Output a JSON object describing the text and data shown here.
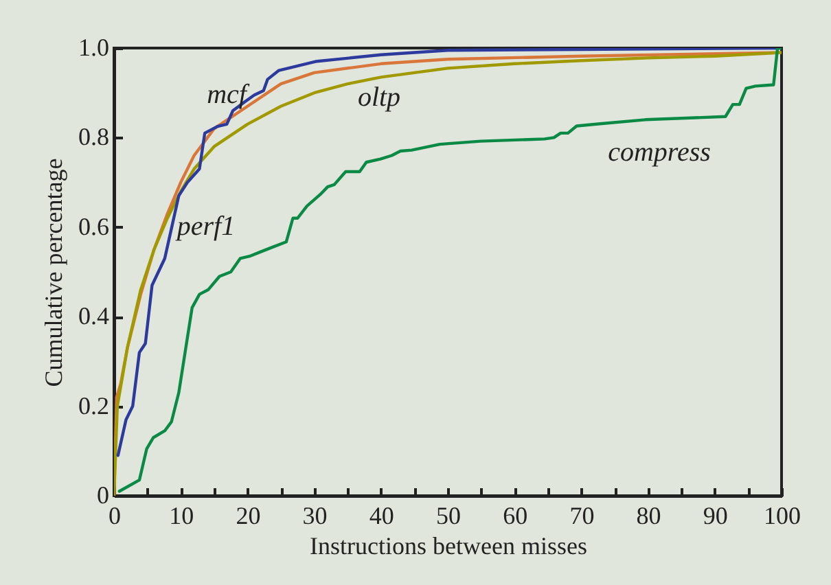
{
  "chart_data": {
    "type": "line",
    "xlabel": "Instructions between misses",
    "ylabel": "Cumulative percentage",
    "xlim": [
      0,
      100
    ],
    "ylim": [
      0,
      1
    ],
    "xticks": [
      0,
      {
        "value": 5,
        "label": null
      },
      10,
      {
        "value": 15,
        "label": null
      },
      20,
      {
        "value": 25,
        "label": null
      },
      30,
      {
        "value": 35,
        "label": null
      },
      40,
      {
        "value": 45,
        "label": null
      },
      50,
      {
        "value": 55,
        "label": null
      },
      60,
      {
        "value": 65,
        "label": null
      },
      70,
      {
        "value": 75,
        "label": null
      },
      80,
      {
        "value": 85,
        "label": null
      },
      90,
      {
        "value": 95,
        "label": null
      },
      100
    ],
    "yticks": [
      0,
      0.2,
      0.4,
      0.6,
      0.8,
      {
        "value": 1,
        "label": "1.0"
      }
    ],
    "grid": false,
    "legend": false,
    "marker": "none",
    "line_style": "solid",
    "series": [
      {
        "name": "mcf",
        "color": "#d9773a",
        "x": [
          0,
          0.4,
          1,
          2,
          4,
          6,
          8,
          10,
          12,
          15,
          20,
          25,
          30,
          40,
          50,
          70,
          100
        ],
        "values": [
          0,
          0.22,
          0.25,
          0.33,
          0.45,
          0.55,
          0.63,
          0.7,
          0.76,
          0.82,
          0.87,
          0.92,
          0.945,
          0.965,
          0.975,
          0.982,
          0.99
        ]
      },
      {
        "name": "oltp",
        "color": "#a09a00",
        "x": [
          0,
          0.5,
          2,
          4,
          6,
          8,
          10,
          12,
          15,
          20,
          25,
          30,
          35,
          40,
          50,
          60,
          70,
          80,
          90,
          100
        ],
        "values": [
          0,
          0.2,
          0.33,
          0.46,
          0.55,
          0.62,
          0.68,
          0.73,
          0.78,
          0.83,
          0.87,
          0.9,
          0.92,
          0.935,
          0.955,
          0.965,
          0.972,
          0.978,
          0.982,
          0.99
        ]
      },
      {
        "name": "perf1",
        "color": "#2b3a9c",
        "x": [
          0.6,
          1.8,
          2.8,
          3.8,
          4.7,
          5.7,
          7.6,
          9.7,
          11,
          12.8,
          13.6,
          15.5,
          16.9,
          17.8,
          19.6,
          21,
          22.4,
          23,
          24.7,
          30.2,
          40,
          50,
          70,
          100
        ],
        "values": [
          0.09,
          0.17,
          0.2,
          0.32,
          0.34,
          0.47,
          0.53,
          0.67,
          0.7,
          0.73,
          0.81,
          0.825,
          0.83,
          0.86,
          0.88,
          0.895,
          0.905,
          0.93,
          0.95,
          0.97,
          0.985,
          0.995,
          0.997,
          1
        ]
      },
      {
        "name": "compress",
        "color": "#0b8a46",
        "x": [
          0.8,
          3.8,
          4.9,
          5.9,
          7.6,
          8.6,
          9.7,
          11.7,
          12.8,
          14.1,
          15.8,
          17.5,
          18.9,
          20.3,
          22,
          23.7,
          25.8,
          26.8,
          27.5,
          28.9,
          30.9,
          32,
          33,
          34.7,
          36.8,
          37.8,
          39.9,
          41.6,
          42.9,
          44.6,
          48.8,
          54.9,
          64.5,
          65.9,
          66.9,
          68,
          69.3,
          72.8,
          79.6,
          91.6,
          92.7,
          93.7,
          94.7,
          96.1,
          98.8,
          99.4,
          100
        ],
        "values": [
          0.01,
          0.035,
          0.105,
          0.13,
          0.145,
          0.165,
          0.23,
          0.42,
          0.45,
          0.46,
          0.49,
          0.5,
          0.53,
          0.535,
          0.545,
          0.555,
          0.567,
          0.62,
          0.62,
          0.647,
          0.673,
          0.69,
          0.695,
          0.724,
          0.724,
          0.745,
          0.752,
          0.76,
          0.77,
          0.772,
          0.785,
          0.792,
          0.797,
          0.8,
          0.81,
          0.81,
          0.826,
          0.831,
          0.84,
          0.847,
          0.874,
          0.874,
          0.91,
          0.915,
          0.918,
          1,
          1
        ]
      }
    ]
  }
}
